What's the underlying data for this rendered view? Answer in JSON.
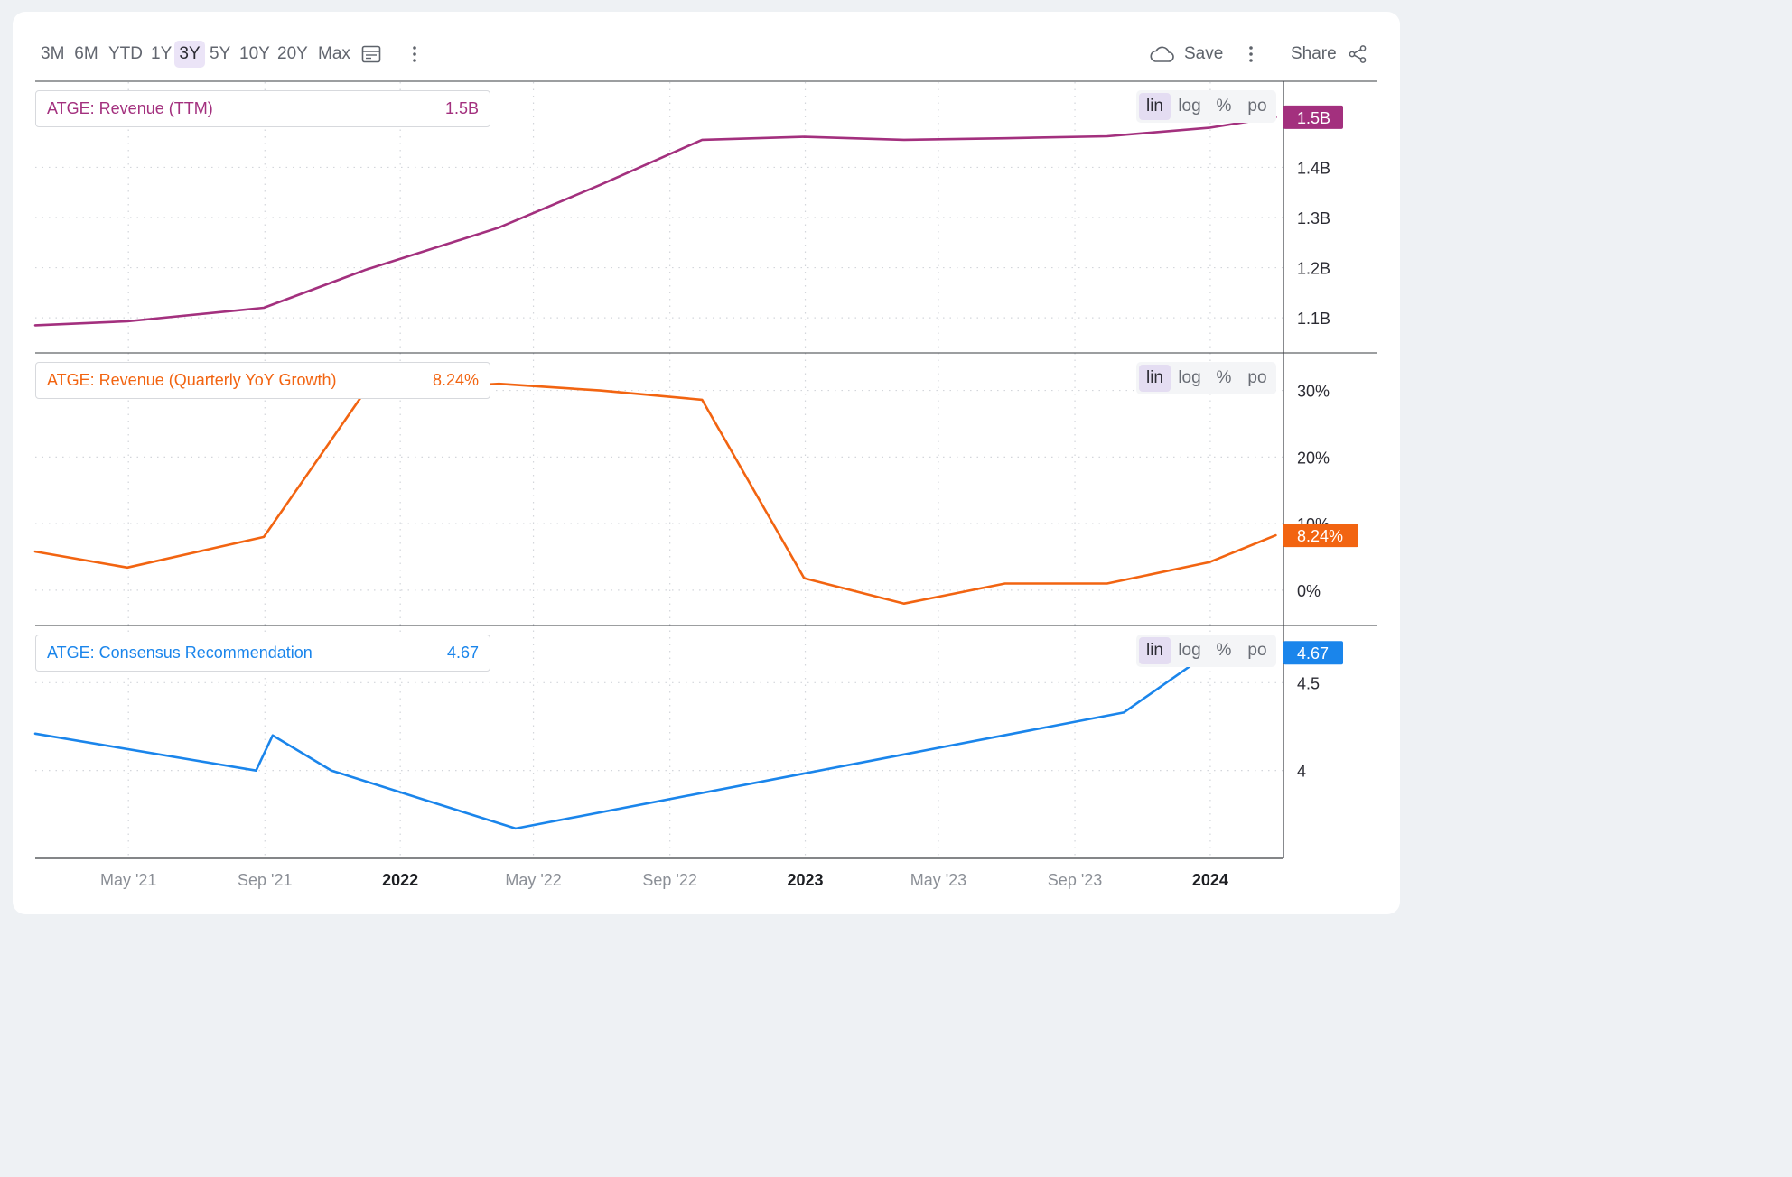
{
  "toolbar": {
    "ranges": [
      "3M",
      "6M",
      "YTD",
      "1Y",
      "3Y",
      "5Y",
      "10Y",
      "20Y",
      "Max"
    ],
    "active_range": "3Y",
    "calendar_icon": "calendar-icon",
    "more_icon": "more-vertical-icon",
    "save_label": "Save",
    "save_icon": "cloud-icon",
    "share_label": "Share",
    "share_icon": "share-icon"
  },
  "scale_options": [
    "lin",
    "log",
    "%",
    "po"
  ],
  "active_scale": "lin",
  "x_axis": {
    "ticks": [
      {
        "label": "May '21",
        "date": "2021-05-01",
        "bold": false
      },
      {
        "label": "Sep '21",
        "date": "2021-09-01",
        "bold": false
      },
      {
        "label": "2022",
        "date": "2022-01-01",
        "bold": true
      },
      {
        "label": "May '22",
        "date": "2022-05-01",
        "bold": false
      },
      {
        "label": "Sep '22",
        "date": "2022-09-01",
        "bold": false
      },
      {
        "label": "2023",
        "date": "2023-01-01",
        "bold": true
      },
      {
        "label": "May '23",
        "date": "2023-05-01",
        "bold": false
      },
      {
        "label": "Sep '23",
        "date": "2023-09-01",
        "bold": false
      },
      {
        "label": "2024",
        "date": "2024-01-01",
        "bold": true
      }
    ],
    "range": [
      "2021-02-06",
      "2024-03-07"
    ]
  },
  "chart_data": [
    {
      "type": "line",
      "legend_name": "ATGE: Revenue (TTM)",
      "legend_value": "1.5B",
      "color": "#a3307e",
      "badge": "1.5B",
      "badge_value": 1.5,
      "ylim": [
        1.03,
        1.57
      ],
      "y_ticks": [
        {
          "v": 1.1,
          "label": "1.1B"
        },
        {
          "v": 1.2,
          "label": "1.2B"
        },
        {
          "v": 1.3,
          "label": "1.3B"
        },
        {
          "v": 1.4,
          "label": "1.4B"
        }
      ],
      "grid": true,
      "x": [
        "2021-02-06",
        "2021-04-30",
        "2021-08-31",
        "2021-11-30",
        "2022-03-31",
        "2022-06-30",
        "2022-09-30",
        "2022-12-31",
        "2023-03-31",
        "2023-06-30",
        "2023-09-30",
        "2023-12-31",
        "2024-02-29"
      ],
      "y": [
        1.085,
        1.093,
        1.12,
        1.195,
        1.28,
        1.365,
        1.455,
        1.461,
        1.455,
        1.458,
        1.462,
        1.479,
        1.5
      ]
    },
    {
      "type": "line",
      "legend_name": "ATGE: Revenue (Quarterly YoY Growth)",
      "legend_value": "8.24%",
      "color": "#f26411",
      "badge": "8.24%",
      "badge_value": 8.24,
      "ylim": [
        -5.3,
        35.5
      ],
      "y_ticks": [
        {
          "v": 0,
          "label": "0%"
        },
        {
          "v": 10,
          "label": "10%"
        },
        {
          "v": 20,
          "label": "20%"
        },
        {
          "v": 30,
          "label": "30%"
        }
      ],
      "grid": true,
      "x": [
        "2021-02-06",
        "2021-04-30",
        "2021-08-31",
        "2021-11-30",
        "2022-03-31",
        "2022-06-30",
        "2022-09-30",
        "2022-12-31",
        "2023-03-31",
        "2023-06-30",
        "2023-09-30",
        "2023-12-31",
        "2024-02-29"
      ],
      "y": [
        5.8,
        3.4,
        8.0,
        29.8,
        31.0,
        30.0,
        28.6,
        1.8,
        -2.0,
        1.0,
        1.0,
        4.2,
        8.24
      ]
    },
    {
      "type": "line",
      "legend_name": "ATGE: Consensus Recommendation",
      "legend_value": "4.67",
      "color": "#1a85eb",
      "badge": "4.67",
      "badge_value": 4.67,
      "ylim": [
        3.5,
        4.82
      ],
      "y_ticks": [
        {
          "v": 4,
          "label": "4"
        },
        {
          "v": 4.5,
          "label": "4.5"
        }
      ],
      "grid": true,
      "x": [
        "2021-02-06",
        "2021-08-24",
        "2021-09-08",
        "2021-10-31",
        "2022-04-15",
        "2023-10-15",
        "2023-12-31"
      ],
      "y": [
        4.21,
        4.0,
        4.2,
        4.0,
        3.67,
        4.33,
        4.67
      ]
    }
  ]
}
